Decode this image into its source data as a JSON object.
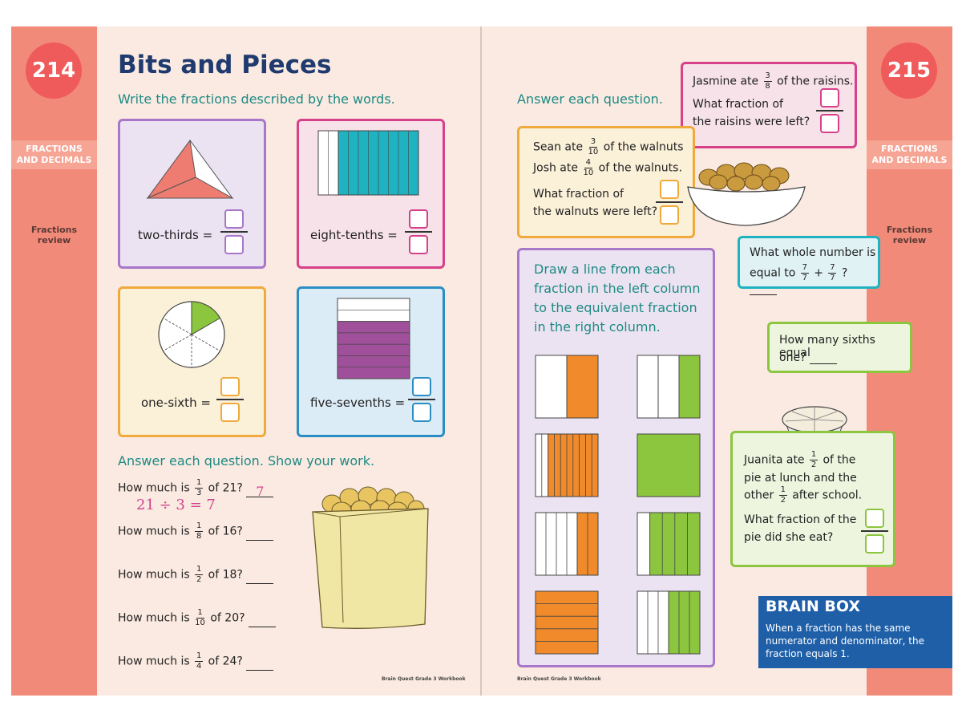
{
  "left_page": {
    "page_number": "214",
    "tab_label_line1": "FRACTIONS",
    "tab_label_line2": "AND DECIMALS",
    "side_label_line1": "Fractions",
    "side_label_line2": "review",
    "title": "Bits and Pieces",
    "instruction1": "Write the fractions described by the words.",
    "cards": [
      {
        "label": "two-thirds =",
        "color": "#a877c9"
      },
      {
        "label": "eight-tenths =",
        "color": "#d6418a"
      },
      {
        "label": "one-sixth =",
        "color": "#f0a93b"
      },
      {
        "label": "five-sevenths =",
        "color": "#2a8ec4"
      }
    ],
    "instruction2": "Answer each question. Show your work.",
    "questions": [
      {
        "pre": "How much is",
        "num": "1",
        "den": "3",
        "post": "of 21?",
        "answer": "7"
      },
      {
        "pre": "How much is",
        "num": "1",
        "den": "8",
        "post": "of 16?",
        "answer": ""
      },
      {
        "pre": "How much is",
        "num": "1",
        "den": "2",
        "post": "of 18?",
        "answer": ""
      },
      {
        "pre": "How much is",
        "num": "1",
        "den": "10",
        "post": "of 20?",
        "answer": ""
      },
      {
        "pre": "How much is",
        "num": "1",
        "den": "4",
        "post": "of 24?",
        "answer": ""
      }
    ],
    "work_shown": "21 ÷ 3 = 7",
    "footer": "Brain Quest Grade 3 Workbook"
  },
  "right_page": {
    "page_number": "215",
    "tab_label_line1": "FRACTIONS",
    "tab_label_line2": "AND DECIMALS",
    "side_label_line1": "Fractions",
    "side_label_line2": "review",
    "instruction": "Answer each question.",
    "walnuts": {
      "line1_pre": "Sean ate",
      "line1_num": "3",
      "line1_den": "10",
      "line1_post": "of the walnuts",
      "line2_pre": "Josh ate",
      "line2_num": "4",
      "line2_den": "10",
      "line2_post": "of the walnuts.",
      "q1": "What fraction of",
      "q2": "the walnuts were left?"
    },
    "raisins": {
      "line1_pre": "Jasmine ate",
      "num": "3",
      "den": "8",
      "line1_post": "of the raisins.",
      "q1": "What fraction of",
      "q2": "the raisins were left?"
    },
    "matching": {
      "line1": "Draw a line from each",
      "line2": "fraction in the left column",
      "line3": "to the equivalent fraction",
      "line4": "in the right column."
    },
    "whole_number": {
      "line1": "What whole number is",
      "line2_pre": "equal to",
      "n1": "7",
      "d1": "7",
      "plus": "+",
      "n2": "7",
      "d2": "7",
      "q": "?"
    },
    "sixths": {
      "line1": "How many sixths equal",
      "line2": "one?"
    },
    "pie": {
      "line1_pre": "Juanita ate",
      "num": "1",
      "den": "2",
      "line1_post": "of the",
      "line2": "pie at lunch and the",
      "line3_pre": "other",
      "line3_post": "after school.",
      "q1": "What fraction of the",
      "q2": "pie did she eat?"
    },
    "brain_box": {
      "title": "BRAIN BOX",
      "text": "When a fraction has the same numerator and denominator, the fraction equals 1."
    },
    "footer": "Brain Quest Grade 3 Workbook"
  },
  "colors": {
    "page_bg": "#fbeae1",
    "margin_band": "#f28a7a",
    "page_number_circle": "#ef5a5a",
    "title": "#1f3a6e",
    "teal_text": "#1d8a84",
    "orange": "#f08a2a",
    "green": "#8cc63f",
    "teal_fill": "#1fb2c0",
    "purple_fill": "#a0509b",
    "pink_triangle": "#ee7c70"
  }
}
